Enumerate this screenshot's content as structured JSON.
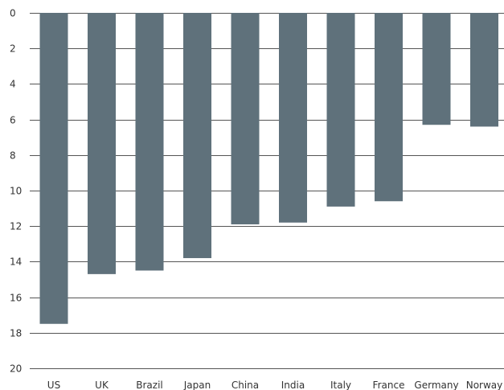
{
  "chart_data": {
    "type": "bar",
    "orientation": "vertical",
    "y_axis_inverted": true,
    "categories": [
      "US",
      "UK",
      "Brazil",
      "Japan",
      "China",
      "India",
      "Italy",
      "France",
      "Germany",
      "Norway"
    ],
    "values": [
      17.5,
      14.7,
      14.5,
      13.8,
      11.9,
      11.8,
      10.9,
      10.6,
      6.3,
      6.4
    ],
    "ylim": [
      0,
      20
    ],
    "yticks": [
      "0",
      "2",
      "4",
      "6",
      "8",
      "10",
      "12",
      "14",
      "16",
      "18",
      "20"
    ],
    "grid": true,
    "bar_color": "#5f717b",
    "title": "",
    "xlabel": "",
    "ylabel": ""
  }
}
